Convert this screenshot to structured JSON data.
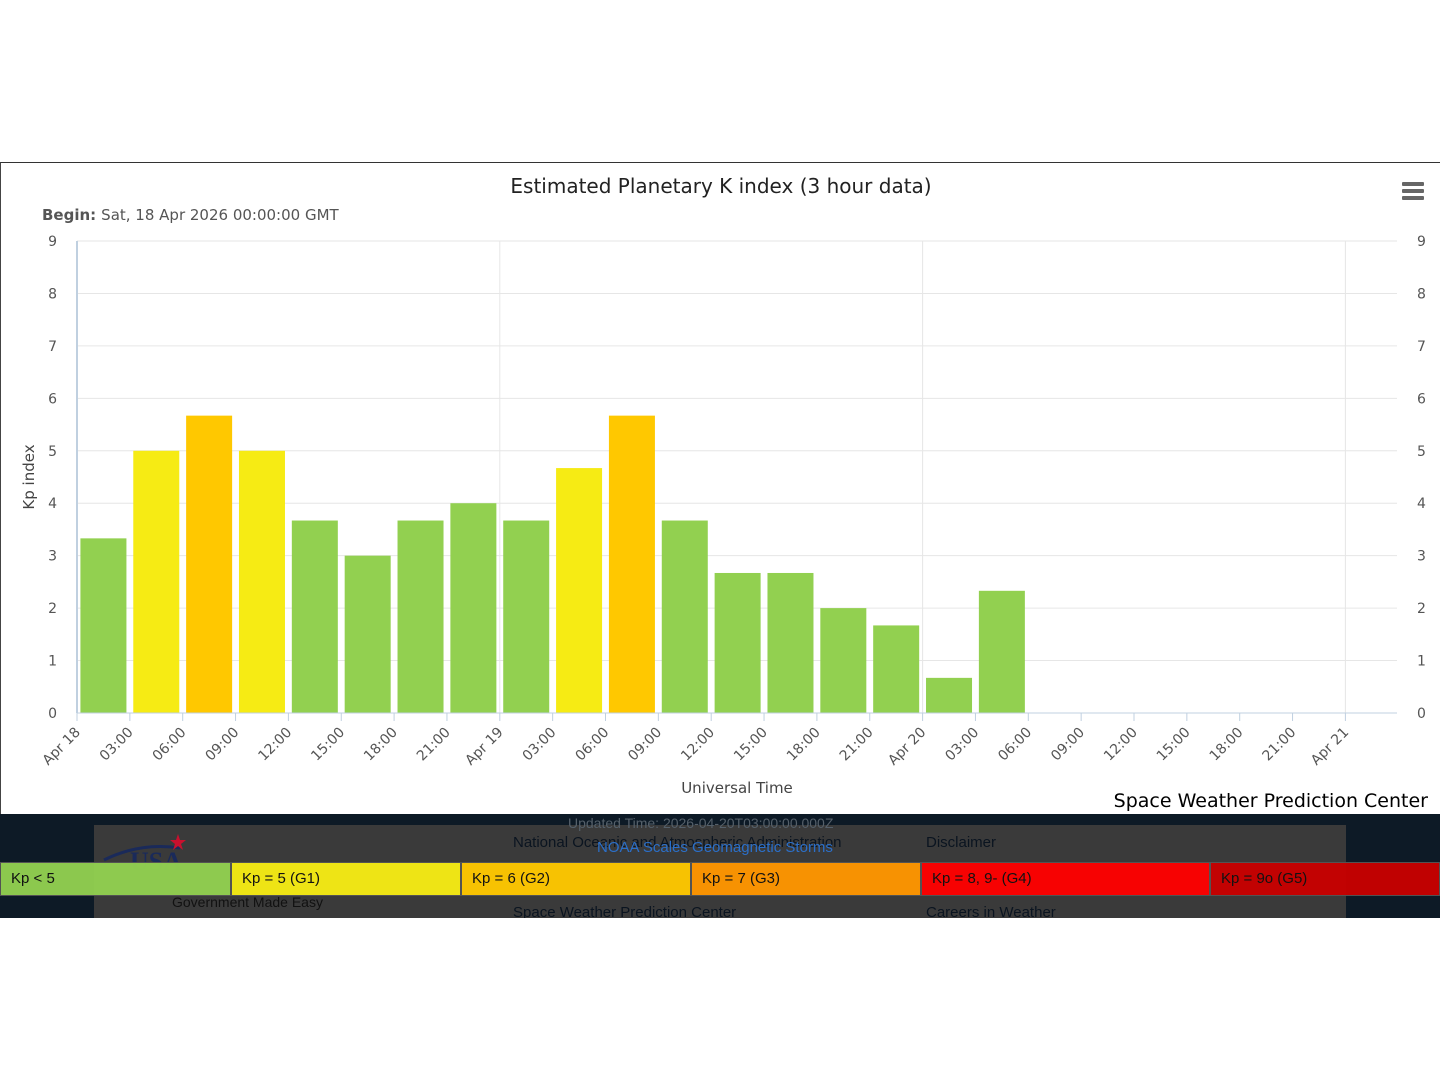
{
  "chart_data": {
    "type": "bar",
    "title": "Estimated Planetary K index (3 hour data)",
    "subtitle_label": "Begin:",
    "subtitle_value": "Sat, 18 Apr 2026 00:00:00 GMT",
    "ylabel": "Kp index",
    "xlabel": "Universal Time",
    "ylim": [
      0,
      9
    ],
    "yticks": [
      "0",
      "1",
      "2",
      "3",
      "4",
      "5",
      "6",
      "7",
      "8",
      "9"
    ],
    "xticks": [
      "Apr 18",
      "03:00",
      "06:00",
      "09:00",
      "12:00",
      "15:00",
      "18:00",
      "21:00",
      "Apr 19",
      "03:00",
      "06:00",
      "09:00",
      "12:00",
      "15:00",
      "18:00",
      "21:00",
      "Apr 20",
      "03:00",
      "06:00",
      "09:00",
      "12:00",
      "15:00",
      "18:00",
      "21:00",
      "Apr 21"
    ],
    "values": [
      3.33,
      5.0,
      5.67,
      5.0,
      3.67,
      3.0,
      3.67,
      4.0,
      3.67,
      4.67,
      5.67,
      3.67,
      2.67,
      2.67,
      2.0,
      1.67,
      0.67,
      2.33
    ],
    "colors": [
      "#92d050",
      "#f6eb14",
      "#ffc800",
      "#f6eb14",
      "#92d050",
      "#92d050",
      "#92d050",
      "#92d050",
      "#92d050",
      "#f6eb14",
      "#ffc800",
      "#92d050",
      "#92d050",
      "#92d050",
      "#92d050",
      "#92d050",
      "#92d050",
      "#92d050"
    ],
    "grid": true,
    "legend": "bottom"
  },
  "credit": "Space Weather Prediction Center",
  "footer": {
    "updated_time": "Updated Time: 2026-04-20T03:00:00.000Z",
    "noaa_scales_link": "NOAA Scales Geomagnetic Storms",
    "links": [
      "National Oceanic and Atmospheric Administration",
      "Space Weather Prediction Center",
      "Disclaimer",
      "Careers in Weather"
    ],
    "usa_tagline": "Government Made Easy"
  },
  "legend_bar": [
    {
      "label": "Kp < 5",
      "color": "#92d050"
    },
    {
      "label": "Kp = 5 (G1)",
      "color": "#f6eb14"
    },
    {
      "label": "Kp = 6 (G2)",
      "color": "#ffc800"
    },
    {
      "label": "Kp = 7 (G3)",
      "color": "#ff9600"
    },
    {
      "label": "Kp = 8, 9- (G4)",
      "color": "#ff0000"
    },
    {
      "label": "Kp = 9o (G5)",
      "color": "#c80000"
    }
  ]
}
